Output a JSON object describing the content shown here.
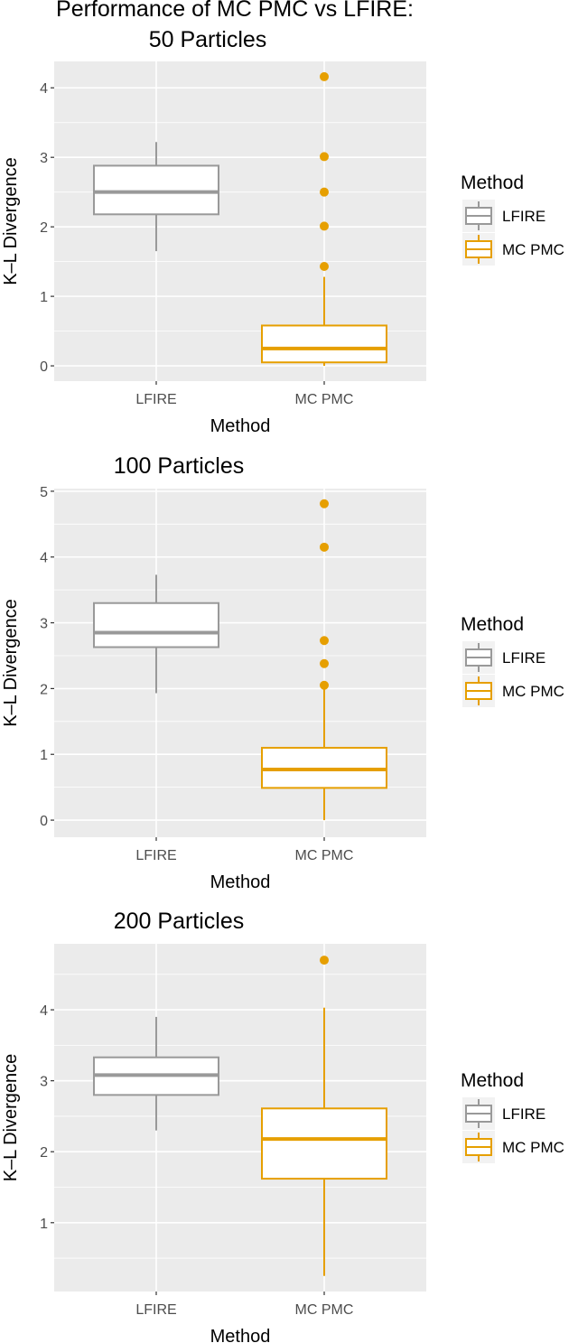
{
  "chart_data": [
    {
      "type": "box",
      "title": "Performance of MC PMC vs LFIRE:\n50 Particles",
      "title_lines": [
        "Performance of MC PMC vs LFIRE:",
        "50 Particles"
      ],
      "xlabel": "Method",
      "ylabel": "K–L Divergence",
      "categories": [
        "LFIRE",
        "MC PMC"
      ],
      "ylim": [
        -0.22,
        4.38
      ],
      "yticks": [
        0,
        1,
        2,
        3,
        4
      ],
      "grid": true,
      "legend": {
        "title": "Method",
        "position": "right",
        "entries": [
          "LFIRE",
          "MC PMC"
        ]
      },
      "boxes": [
        {
          "name": "LFIRE",
          "whisker_low": 1.65,
          "q1": 2.18,
          "median": 2.5,
          "q3": 2.88,
          "whisker_high": 3.22,
          "outliers": []
        },
        {
          "name": "MC PMC",
          "whisker_low": 0.0,
          "q1": 0.05,
          "median": 0.25,
          "q3": 0.58,
          "whisker_high": 1.28,
          "outliers": [
            1.43,
            2.01,
            2.5,
            3.01,
            4.16
          ]
        }
      ]
    },
    {
      "type": "box",
      "title": "100 Particles",
      "title_lines": [
        "100 Particles"
      ],
      "xlabel": "Method",
      "ylabel": "K–L Divergence",
      "categories": [
        "LFIRE",
        "MC PMC"
      ],
      "ylim": [
        -0.26,
        5.04
      ],
      "yticks": [
        0,
        1,
        2,
        3,
        4,
        5
      ],
      "grid": true,
      "legend": {
        "title": "Method",
        "position": "right",
        "entries": [
          "LFIRE",
          "MC PMC"
        ]
      },
      "boxes": [
        {
          "name": "LFIRE",
          "whisker_low": 1.93,
          "q1": 2.63,
          "median": 2.85,
          "q3": 3.3,
          "whisker_high": 3.73,
          "outliers": []
        },
        {
          "name": "MC PMC",
          "whisker_low": 0.0,
          "q1": 0.49,
          "median": 0.77,
          "q3": 1.1,
          "whisker_high": 2.0,
          "outliers": [
            2.05,
            2.38,
            2.73,
            4.15,
            4.81
          ]
        }
      ]
    },
    {
      "type": "box",
      "title": "200 Particles",
      "title_lines": [
        "200 Particles"
      ],
      "xlabel": "Method",
      "ylabel": "K–L Divergence",
      "categories": [
        "LFIRE",
        "MC PMC"
      ],
      "ylim": [
        0.03,
        4.93
      ],
      "yticks": [
        1,
        2,
        3,
        4
      ],
      "grid": true,
      "legend": {
        "title": "Method",
        "position": "right",
        "entries": [
          "LFIRE",
          "MC PMC"
        ]
      },
      "boxes": [
        {
          "name": "LFIRE",
          "whisker_low": 2.3,
          "q1": 2.8,
          "median": 3.08,
          "q3": 3.33,
          "whisker_high": 3.9,
          "outliers": []
        },
        {
          "name": "MC PMC",
          "whisker_low": 0.25,
          "q1": 1.62,
          "median": 2.18,
          "q3": 2.61,
          "whisker_high": 4.03,
          "outliers": [
            4.7
          ]
        }
      ]
    }
  ],
  "colors": {
    "LFIRE": "#999999",
    "MC PMC": "#E69F00",
    "panel": "#EBEBEB",
    "grid": "#FFFFFF"
  }
}
